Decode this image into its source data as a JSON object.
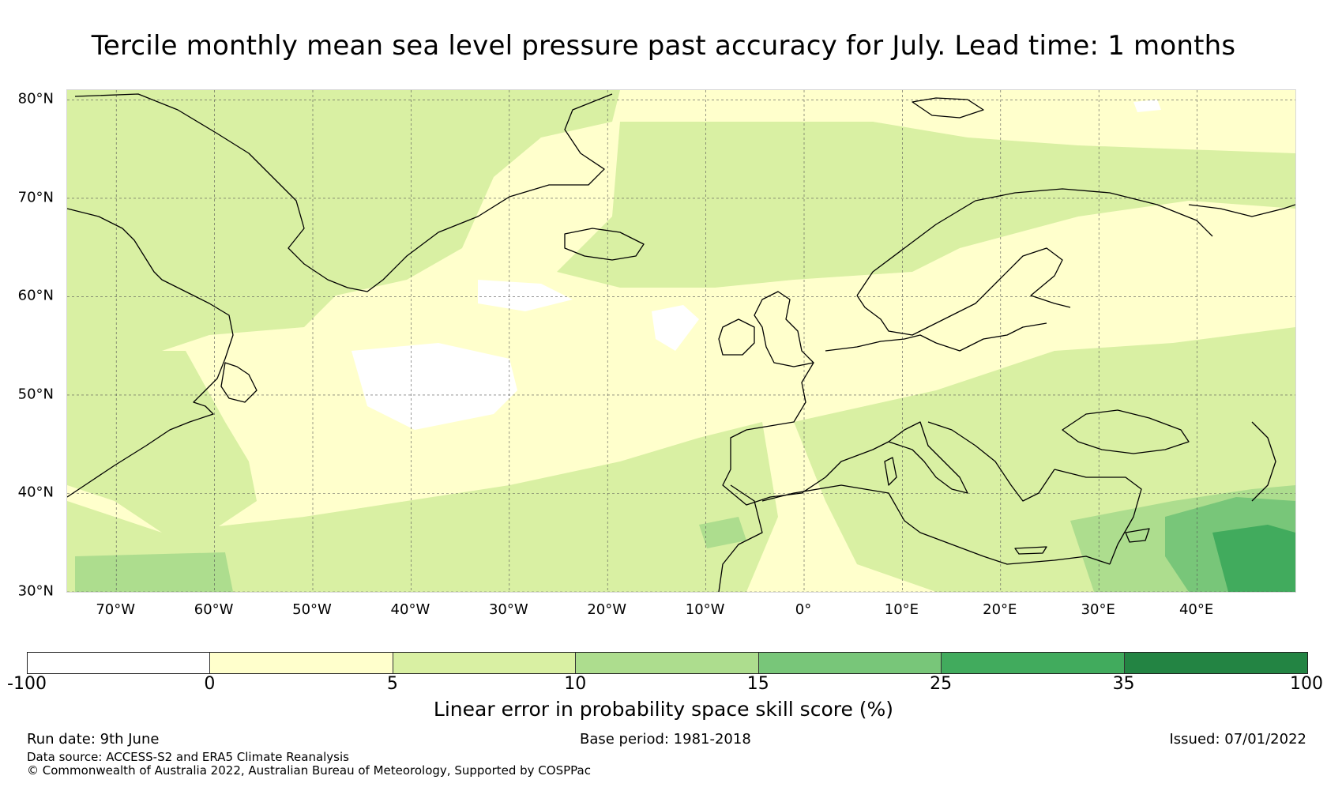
{
  "title": "Tercile monthly mean sea level pressure past accuracy for July. Lead time: 1 months",
  "map": {
    "lat_labels": [
      "80°N",
      "70°N",
      "60°N",
      "50°N",
      "40°N",
      "30°N"
    ],
    "lon_labels": [
      "70°W",
      "60°W",
      "50°W",
      "40°W",
      "30°W",
      "20°W",
      "10°W",
      "0°",
      "10°E",
      "20°E",
      "30°E",
      "40°E"
    ],
    "extent": {
      "lon": [
        -75,
        50
      ],
      "lat": [
        30,
        81
      ]
    },
    "colors": {
      "land_outline": "#000000",
      "grid": "#555555"
    }
  },
  "colorbar": {
    "label": "Linear error in probability space skill score (%)",
    "ticks": [
      "-100",
      "0",
      "5",
      "10",
      "15",
      "25",
      "35",
      "100"
    ],
    "bins": [
      {
        "range": "-100 to 0",
        "color": "#ffffff"
      },
      {
        "range": "0 to 5",
        "color": "#ffffcc"
      },
      {
        "range": "5 to 10",
        "color": "#d9f0a3"
      },
      {
        "range": "10 to 15",
        "color": "#addd8e"
      },
      {
        "range": "15 to 25",
        "color": "#78c679"
      },
      {
        "range": "25 to 35",
        "color": "#41ab5d"
      },
      {
        "range": "35 to 100",
        "color": "#238443"
      }
    ]
  },
  "footer": {
    "run_date": "Run date: 9th June",
    "base_period": "Base period: 1981-2018",
    "issued": "Issued: 07/01/2022",
    "data_source": "Data source: ACCESS-S2 and ERA5 Climate Reanalysis",
    "copyright": "© Commonwealth of Australia 2022, Australian Bureau of Meteorology, Supported by COSPPac"
  }
}
